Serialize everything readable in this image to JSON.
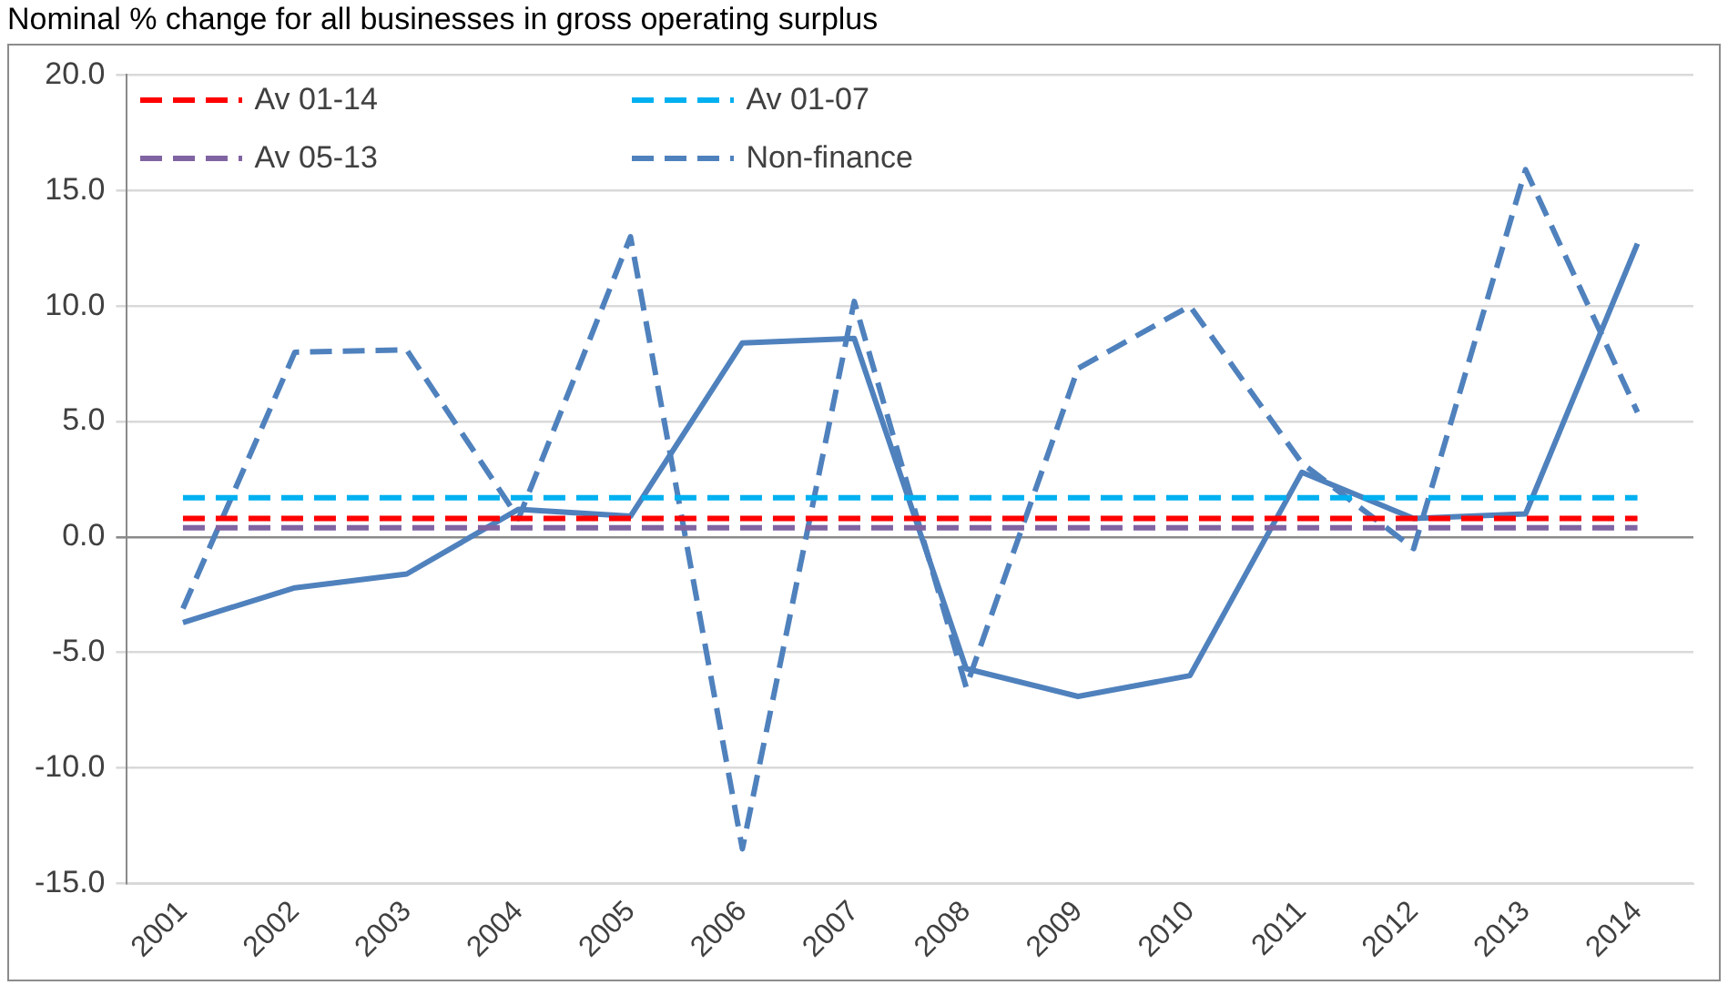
{
  "chart_data": {
    "type": "line",
    "title": "Nominal % change for all businesses in gross operating surplus",
    "categories": [
      "2001",
      "2002",
      "2003",
      "2004",
      "2005",
      "2006",
      "2007",
      "2008",
      "2009",
      "2010",
      "2011",
      "2012",
      "2013",
      "2014"
    ],
    "series": [
      {
        "name": "Av 01-14",
        "color": "#ff0000",
        "line_style": "dashed",
        "values": [
          0.8,
          0.8,
          0.8,
          0.8,
          0.8,
          0.8,
          0.8,
          0.8,
          0.8,
          0.8,
          0.8,
          0.8,
          0.8,
          0.8
        ]
      },
      {
        "name": "Av 01-07",
        "color": "#00b0f0",
        "line_style": "dashed",
        "values": [
          1.7,
          1.7,
          1.7,
          1.7,
          1.7,
          1.7,
          1.7,
          1.7,
          1.7,
          1.7,
          1.7,
          1.7,
          1.7,
          1.7
        ]
      },
      {
        "name": "Av 05-13",
        "color": "#8064a2",
        "line_style": "dashed",
        "values": [
          0.4,
          0.4,
          0.4,
          0.4,
          0.4,
          0.4,
          0.4,
          0.4,
          0.4,
          0.4,
          0.4,
          0.4,
          0.4,
          0.4
        ]
      },
      {
        "name": "Non-finance",
        "color": "#4f81bd",
        "line_style": "dashed",
        "values": [
          -3.1,
          8.0,
          8.1,
          0.8,
          13.0,
          -13.5,
          10.2,
          -6.5,
          7.3,
          10.0,
          3.2,
          -0.5,
          15.9,
          5.4
        ]
      },
      {
        "color": "#4f81bd",
        "line_style": "solid",
        "values": [
          -3.7,
          -2.2,
          -1.6,
          1.2,
          0.9,
          8.4,
          8.6,
          -5.7,
          -6.9,
          -6.0,
          2.8,
          0.8,
          1.0,
          12.7
        ]
      }
    ],
    "ylim": [
      -15,
      20
    ],
    "yticks": [
      {
        "value": -15,
        "label": "-15.0"
      },
      {
        "value": -10,
        "label": "-10.0"
      },
      {
        "value": -5,
        "label": "-5.0"
      },
      {
        "value": 0,
        "label": "0.0"
      },
      {
        "value": 5,
        "label": "5.0"
      },
      {
        "value": 10,
        "label": "10.0"
      },
      {
        "value": 15,
        "label": "15.0"
      },
      {
        "value": 20,
        "label": "20.0"
      }
    ],
    "grid": "y",
    "legend": "top left",
    "marker": "none"
  }
}
